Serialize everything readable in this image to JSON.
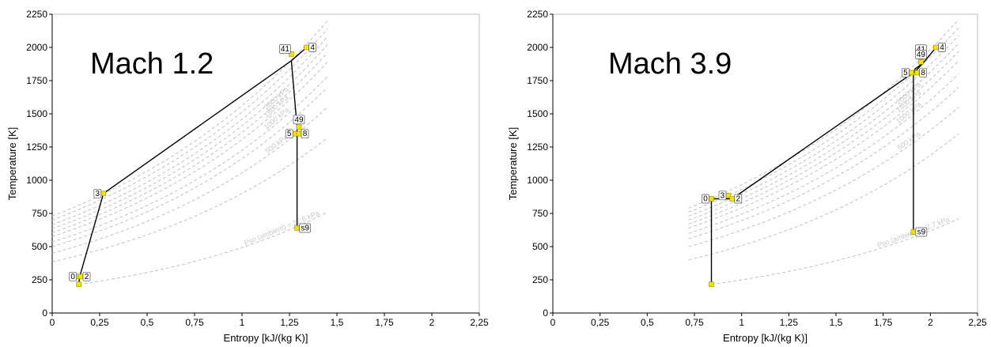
{
  "chart_data": [
    {
      "type": "line",
      "title": "Mach 1.2",
      "xlabel": "Entropy [kJ/(kg K)]",
      "ylabel": "Temperature [K]",
      "xlim": [
        0,
        2.25
      ],
      "ylim": [
        0,
        2250
      ],
      "x_ticks": [
        "0",
        "0,25",
        "0,5",
        "0,75",
        "1",
        "1,25",
        "1,5",
        "1,75",
        "2",
        "2,25"
      ],
      "y_ticks": [
        "0",
        "250",
        "500",
        "750",
        "1000",
        "1250",
        "1500",
        "1750",
        "2000",
        "2250"
      ],
      "grid": false,
      "isobars": [
        {
          "label": "",
          "s_start": 0,
          "T_start": 730,
          "s_end": 1.45,
          "T_end": 2200
        },
        {
          "label": "",
          "s_start": 0,
          "T_start": 700,
          "s_end": 1.45,
          "T_end": 2140
        },
        {
          "label": "",
          "s_start": 0,
          "T_start": 665,
          "s_end": 1.45,
          "T_end": 2080
        },
        {
          "label": "",
          "s_start": 0,
          "T_start": 635,
          "s_end": 1.45,
          "T_end": 2020
        },
        {
          "label": "2000 kPa",
          "s_start": 0,
          "T_start": 605,
          "s_end": 1.45,
          "T_end": 1960
        },
        {
          "label": "1500 kPa",
          "s_start": 0,
          "T_start": 575,
          "s_end": 1.45,
          "T_end": 1890
        },
        {
          "label": "1000 kPa",
          "s_start": 0,
          "T_start": 535,
          "s_end": 1.45,
          "T_end": 1780
        },
        {
          "label": "",
          "s_start": 0,
          "T_start": 500,
          "s_end": 1.45,
          "T_end": 1700
        },
        {
          "label": "500 kPa",
          "s_start": 0,
          "T_start": 450,
          "s_end": 1.45,
          "T_end": 1550
        },
        {
          "label": "",
          "s_start": 0,
          "T_start": 385,
          "s_end": 1.45,
          "T_end": 1320
        },
        {
          "label": "Pso (ambient) = 22.6 kPa",
          "s_start": 0.14,
          "T_start": 216,
          "s_end": 1.45,
          "T_end": 760
        }
      ],
      "cycle_path": [
        {
          "s": 0.14,
          "T": 216
        },
        {
          "s": 0.145,
          "T": 275
        },
        {
          "s": 0.27,
          "T": 900
        },
        {
          "s": 1.26,
          "T": 1900
        },
        {
          "s": 1.34,
          "T": 2000
        },
        {
          "s": 1.26,
          "T": 1900
        },
        {
          "s": 1.29,
          "T": 1400
        },
        {
          "s": 1.29,
          "T": 1350
        },
        {
          "s": 1.29,
          "T": 640
        }
      ],
      "points": [
        {
          "label": "0",
          "s": 0.14,
          "T": 275,
          "side": "left"
        },
        {
          "label": "2",
          "s": 0.15,
          "T": 275,
          "side": "right"
        },
        {
          "label": "",
          "s": 0.14,
          "T": 216,
          "side": "none"
        },
        {
          "label": "3",
          "s": 0.27,
          "T": 900,
          "side": "left"
        },
        {
          "label": "41",
          "s": 1.26,
          "T": 1950,
          "side": "above-left"
        },
        {
          "label": "4",
          "s": 1.34,
          "T": 2000,
          "side": "right"
        },
        {
          "label": "49",
          "s": 1.3,
          "T": 1400,
          "side": "above"
        },
        {
          "label": "5",
          "s": 1.28,
          "T": 1350,
          "side": "left"
        },
        {
          "label": "8",
          "s": 1.3,
          "T": 1350,
          "side": "right"
        },
        {
          "label": "s9",
          "s": 1.29,
          "T": 640,
          "side": "right"
        }
      ]
    },
    {
      "type": "line",
      "title": "Mach 3.9",
      "xlabel": "Entropy [kJ/(kg K)]",
      "ylabel": "Temperature [K]",
      "xlim": [
        0,
        2.25
      ],
      "ylim": [
        0,
        2250
      ],
      "x_ticks": [
        "0",
        "0,25",
        "0,5",
        "0,75",
        "1",
        "1,25",
        "1,5",
        "1,75",
        "2",
        "2,25"
      ],
      "y_ticks": [
        "0",
        "250",
        "500",
        "750",
        "1000",
        "1250",
        "1500",
        "1750",
        "2000",
        "2250"
      ],
      "grid": false,
      "isobars": [
        {
          "label": "",
          "s_start": 0.72,
          "T_start": 790,
          "s_end": 2.15,
          "T_end": 2210
        },
        {
          "label": "",
          "s_start": 0.72,
          "T_start": 760,
          "s_end": 2.15,
          "T_end": 2150
        },
        {
          "label": "",
          "s_start": 0.72,
          "T_start": 730,
          "s_end": 2.15,
          "T_end": 2090
        },
        {
          "label": "",
          "s_start": 0.72,
          "T_start": 700,
          "s_end": 2.15,
          "T_end": 2030
        },
        {
          "label": "2000 kPa",
          "s_start": 0.72,
          "T_start": 670,
          "s_end": 2.15,
          "T_end": 1970
        },
        {
          "label": "1500 kPa",
          "s_start": 0.72,
          "T_start": 640,
          "s_end": 2.15,
          "T_end": 1900
        },
        {
          "label": "1000 kPa",
          "s_start": 0.72,
          "T_start": 600,
          "s_end": 2.15,
          "T_end": 1800
        },
        {
          "label": "",
          "s_start": 0.72,
          "T_start": 560,
          "s_end": 2.15,
          "T_end": 1700
        },
        {
          "label": "500 kPa",
          "s_start": 0.72,
          "T_start": 500,
          "s_end": 2.15,
          "T_end": 1550
        },
        {
          "label": "",
          "s_start": 0.72,
          "T_start": 400,
          "s_end": 2.15,
          "T_end": 1350
        },
        {
          "label": "Pso (ambient) = 2.7 kPa",
          "s_start": 0.84,
          "T_start": 216,
          "s_end": 2.15,
          "T_end": 710
        }
      ],
      "cycle_path": [
        {
          "s": 0.84,
          "T": 216
        },
        {
          "s": 0.84,
          "T": 860
        },
        {
          "s": 0.95,
          "T": 860
        },
        {
          "s": 1.92,
          "T": 1820
        },
        {
          "s": 1.96,
          "T": 1880
        },
        {
          "s": 2.03,
          "T": 2000
        },
        {
          "s": 1.96,
          "T": 1880
        },
        {
          "s": 1.92,
          "T": 1840
        },
        {
          "s": 1.91,
          "T": 1810
        },
        {
          "s": 1.91,
          "T": 610
        }
      ],
      "points": [
        {
          "label": "0",
          "s": 0.84,
          "T": 860,
          "side": "left"
        },
        {
          "label": "",
          "s": 0.84,
          "T": 216,
          "side": "none"
        },
        {
          "label": "3",
          "s": 0.93,
          "T": 885,
          "side": "left"
        },
        {
          "label": "2",
          "s": 0.95,
          "T": 860,
          "side": "right"
        },
        {
          "label": "41",
          "s": 1.95,
          "T": 1930,
          "side": "above"
        },
        {
          "label": "49",
          "s": 1.95,
          "T": 1890,
          "side": "above"
        },
        {
          "label": "4",
          "s": 2.03,
          "T": 2000,
          "side": "right"
        },
        {
          "label": "5",
          "s": 1.9,
          "T": 1810,
          "side": "left"
        },
        {
          "label": "8",
          "s": 1.93,
          "T": 1810,
          "side": "right"
        },
        {
          "label": "s9",
          "s": 1.91,
          "T": 610,
          "side": "right"
        }
      ]
    }
  ]
}
